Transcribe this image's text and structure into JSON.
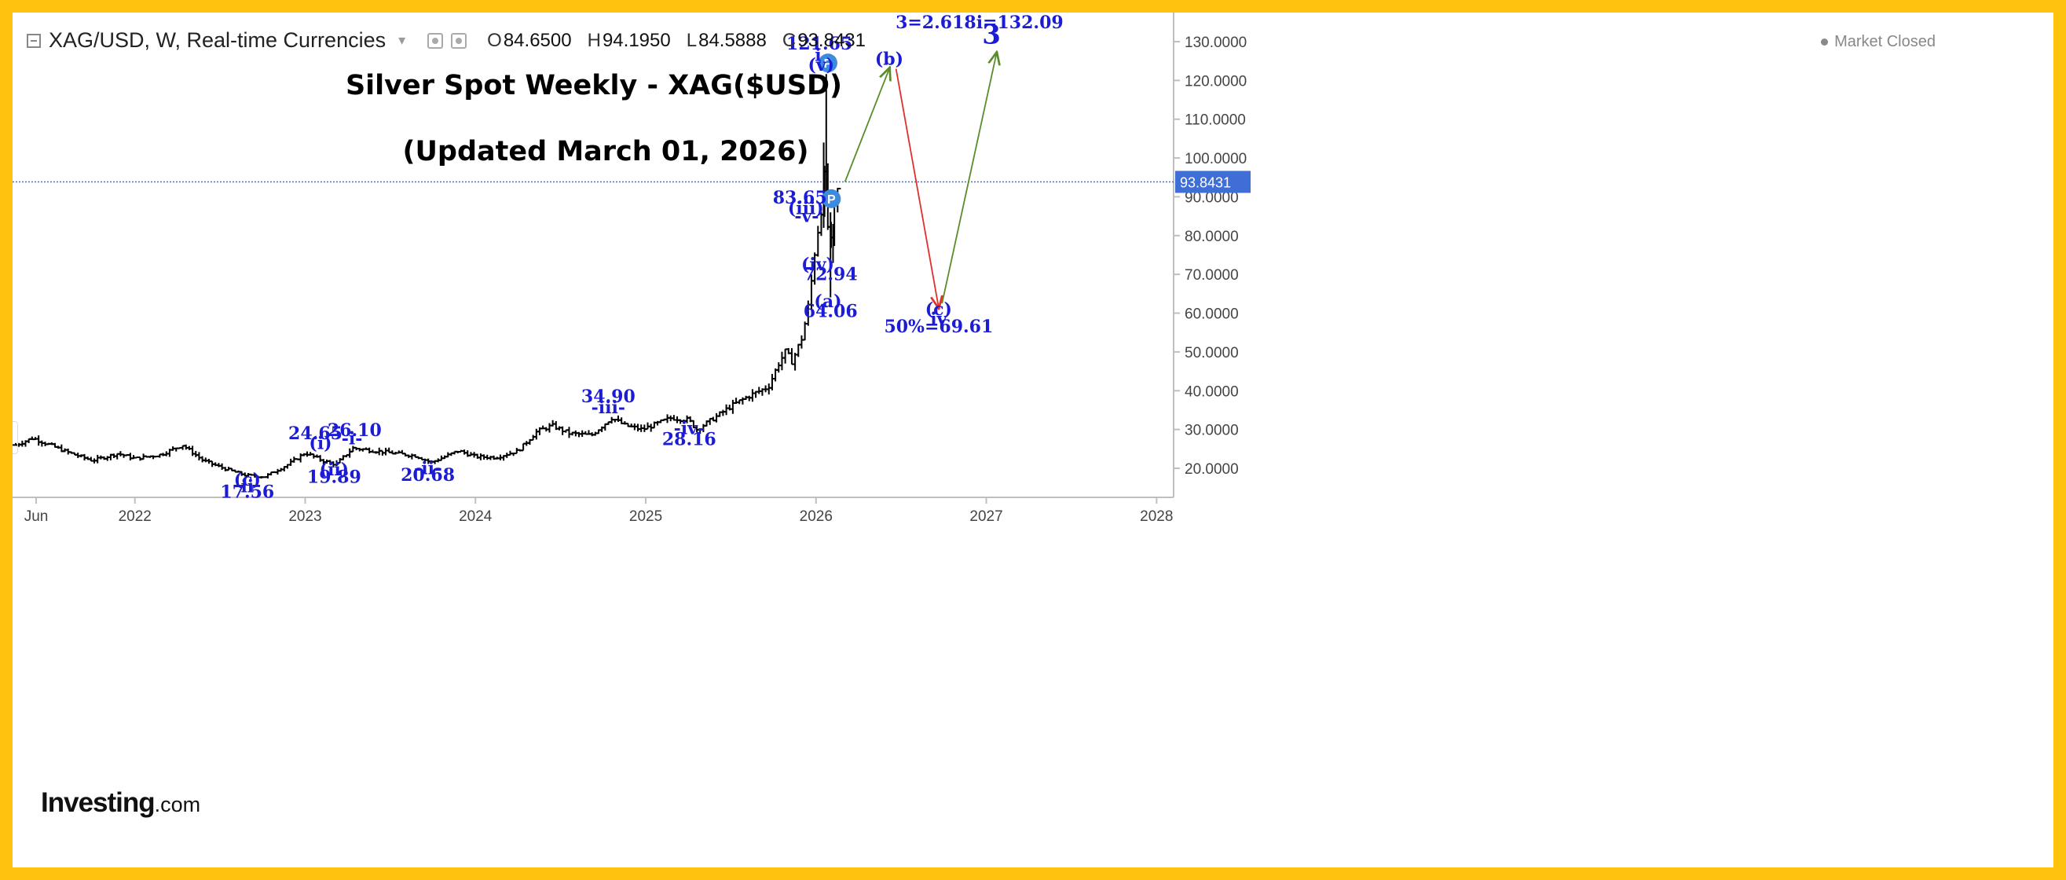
{
  "header": {
    "symbol": "XAG/USD, W, Real-time Currencies",
    "open_label": "O",
    "open": "84.6500",
    "high_label": "H",
    "high": "94.1950",
    "low_label": "L",
    "low": "84.5888",
    "close_label": "C",
    "close": "93.8431",
    "market_status": "Market Closed"
  },
  "branding": {
    "logo_main": "Investing",
    "logo_suffix": ".com"
  },
  "colors": {
    "frame": "#ffc20e",
    "wave_label": "#1c1cd4",
    "price_bars": "#000000",
    "up_projection": "#5b8c2a",
    "down_projection": "#e0302a",
    "price_line": "#3f6fd6",
    "price_tag": "#3f6fd6",
    "pivot_marker": "#3d8be0"
  },
  "chart_data": {
    "type": "bar",
    "title": "Silver Spot Weekly - XAG($USD)",
    "subtitle": "(Updated March 01, 2026)",
    "xlabel": "",
    "ylabel": "",
    "xlim": [
      2021.3,
      2028.1
    ],
    "ylim": [
      12.5,
      137.5
    ],
    "grid": false,
    "x_ticks": [
      {
        "x": 2021.42,
        "label": "Jun"
      },
      {
        "x": 2022.0,
        "label": "2022"
      },
      {
        "x": 2023.0,
        "label": "2023"
      },
      {
        "x": 2024.0,
        "label": "2024"
      },
      {
        "x": 2025.0,
        "label": "2025"
      },
      {
        "x": 2026.0,
        "label": "2026"
      },
      {
        "x": 2027.0,
        "label": "2027"
      },
      {
        "x": 2028.0,
        "label": "2028"
      }
    ],
    "y_ticks": [
      "20.0000",
      "30.0000",
      "40.0000",
      "50.0000",
      "60.0000",
      "70.0000",
      "80.0000",
      "90.0000",
      "100.0000",
      "110.0000",
      "120.0000",
      "130.0000"
    ],
    "last_price": {
      "value": 93.8431,
      "label": "93.8431"
    },
    "anchors": [
      [
        2021.3,
        26.0
      ],
      [
        2021.4,
        27.8
      ],
      [
        2021.6,
        24.2
      ],
      [
        2021.75,
        22.0
      ],
      [
        2021.9,
        23.8
      ],
      [
        2022.0,
        22.5
      ],
      [
        2022.15,
        23.5
      ],
      [
        2022.28,
        26.0
      ],
      [
        2022.4,
        22.0
      ],
      [
        2022.52,
        20.0
      ],
      [
        2022.65,
        18.2
      ],
      [
        2022.76,
        17.8
      ],
      [
        2022.9,
        21.0
      ],
      [
        2023.0,
        24.0
      ],
      [
        2023.1,
        22.0
      ],
      [
        2023.18,
        21.0
      ],
      [
        2023.28,
        25.2
      ],
      [
        2023.5,
        24.0
      ],
      [
        2023.65,
        23.2
      ],
      [
        2023.74,
        21.5
      ],
      [
        2023.9,
        24.5
      ],
      [
        2024.0,
        23.0
      ],
      [
        2024.12,
        22.8
      ],
      [
        2024.25,
        24.5
      ],
      [
        2024.36,
        29.5
      ],
      [
        2024.45,
        31.0
      ],
      [
        2024.55,
        29.0
      ],
      [
        2024.68,
        28.5
      ],
      [
        2024.8,
        33.0
      ],
      [
        2024.88,
        31.0
      ],
      [
        2024.98,
        30.0
      ],
      [
        2025.15,
        33.0
      ],
      [
        2025.25,
        32.5
      ],
      [
        2025.3,
        30.0
      ],
      [
        2025.42,
        33.5
      ],
      [
        2025.5,
        36.0
      ],
      [
        2025.6,
        38.5
      ],
      [
        2025.72,
        41.0
      ],
      [
        2025.78,
        47.0
      ],
      [
        2025.82,
        50.0
      ],
      [
        2025.86,
        47.5
      ],
      [
        2025.92,
        54.0
      ],
      [
        2025.96,
        63.0
      ],
      [
        2025.99,
        75.0
      ],
      [
        2026.01,
        81.0
      ],
      [
        2026.035,
        88.0
      ],
      [
        2026.05,
        95.0
      ],
      [
        2026.06,
        110.0
      ],
      [
        2026.07,
        80.0
      ],
      [
        2026.09,
        78.0
      ],
      [
        2026.1,
        86.0
      ],
      [
        2026.125,
        91.0
      ],
      [
        2026.135,
        93.8431
      ]
    ],
    "projections": [
      {
        "kind": "up",
        "from": [
          2026.17,
          93.8431
        ],
        "to": [
          2026.43,
          123.0
        ]
      },
      {
        "kind": "down",
        "from": [
          2026.47,
          123.0
        ],
        "to": [
          2026.72,
          61.5
        ]
      },
      {
        "kind": "up",
        "from": [
          2026.74,
          62.5
        ],
        "to": [
          2027.06,
          127.0
        ]
      }
    ],
    "pivots": [
      {
        "x": 2026.07,
        "y": 124.5,
        "label": "P"
      },
      {
        "x": 2026.09,
        "y": 89.5,
        "label": "P"
      }
    ],
    "annotations": [
      {
        "text": "121.65",
        "x": 2026.02,
        "y": 128.0
      },
      {
        "text": "i",
        "x": 2026.012,
        "y": 125.0
      },
      {
        "text": "(v)",
        "x": 2026.03,
        "y": 122.5
      },
      {
        "text": "83.65",
        "x": 2025.905,
        "y": 88.3
      },
      {
        "text": "(iii)",
        "x": 2025.94,
        "y": 85.5
      },
      {
        "text": "-v-",
        "x": 2025.945,
        "y": 83.5
      },
      {
        "text": "(iv)",
        "x": 2026.01,
        "y": 71.0
      },
      {
        "text": "72.94",
        "x": 2026.085,
        "y": 68.5
      },
      {
        "text": "(a)",
        "x": 2026.07,
        "y": 61.5
      },
      {
        "text": "64.06",
        "x": 2026.085,
        "y": 59.0
      },
      {
        "text": "(b)",
        "x": 2026.43,
        "y": 124.0
      },
      {
        "text": "(c)",
        "x": 2026.72,
        "y": 59.5
      },
      {
        "text": "iv",
        "x": 2026.72,
        "y": 57.0
      },
      {
        "text": "50%=69.61",
        "x": 2026.72,
        "y": 55.0
      },
      {
        "text": "3=2.618i=132.09",
        "x": 2026.96,
        "y": 133.5
      },
      {
        "text": "3",
        "x": 2027.03,
        "y": 129.5
      },
      {
        "text": "34.90",
        "x": 2024.78,
        "y": 37.0
      },
      {
        "text": "-iii-",
        "x": 2024.78,
        "y": 34.2
      },
      {
        "text": "-iv-",
        "x": 2025.255,
        "y": 28.8
      },
      {
        "text": "28.16",
        "x": 2025.255,
        "y": 26.0
      },
      {
        "text": "26.10",
        "x": 2023.29,
        "y": 28.3
      },
      {
        "text": "-i-",
        "x": 2023.275,
        "y": 26.2
      },
      {
        "text": "24.65",
        "x": 2023.06,
        "y": 27.5
      },
      {
        "text": "(i)",
        "x": 2023.09,
        "y": 25.0
      },
      {
        "text": "(ii)",
        "x": 2023.17,
        "y": 18.2
      },
      {
        "text": "19.89",
        "x": 2023.17,
        "y": 16.2
      },
      {
        "text": "-ii-",
        "x": 2023.72,
        "y": 18.5
      },
      {
        "text": "20.68",
        "x": 2023.72,
        "y": 16.8
      },
      {
        "text": "(c)",
        "x": 2022.66,
        "y": 15.5
      },
      {
        "text": "ii",
        "x": 2022.66,
        "y": 13.8
      },
      {
        "text": "17.56",
        "x": 2022.66,
        "y": 12.4
      }
    ]
  }
}
